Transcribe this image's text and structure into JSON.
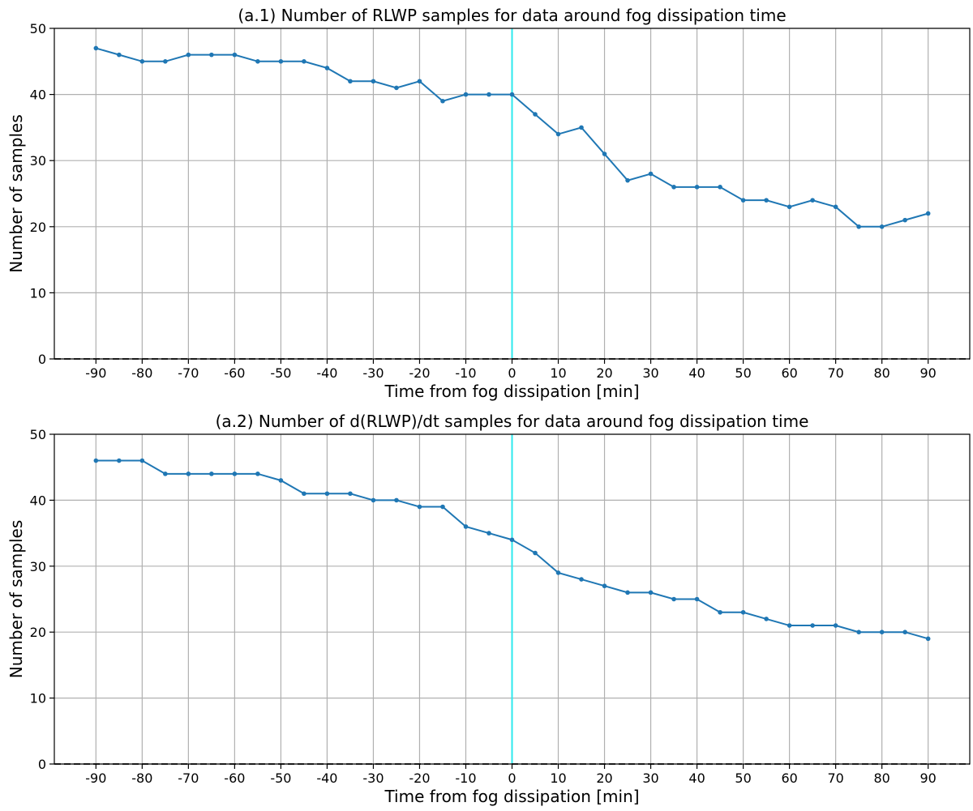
{
  "chart_data": [
    {
      "type": "line",
      "title": "(a.1) Number of RLWP samples for data around fog dissipation time",
      "xlabel": "Time from fog dissipation [min]",
      "ylabel": "Number of samples",
      "xlim": [
        -99,
        99
      ],
      "ylim": [
        0,
        50
      ],
      "xticks": [
        -90,
        -80,
        -70,
        -60,
        -50,
        -40,
        -30,
        -20,
        -10,
        0,
        10,
        20,
        30,
        40,
        50,
        60,
        70,
        80,
        90
      ],
      "yticks": [
        0,
        10,
        20,
        30,
        40,
        50
      ],
      "grid": true,
      "reference_lines": {
        "vertical_x": 0,
        "vertical_color": "#2ee8ee",
        "horizontal_y": 0,
        "horizontal_style": "dashed"
      },
      "series": [
        {
          "color": "#1f77b4",
          "x": [
            -90,
            -85,
            -80,
            -75,
            -70,
            -65,
            -60,
            -55,
            -50,
            -45,
            -40,
            -35,
            -30,
            -25,
            -20,
            -15,
            -10,
            -5,
            0,
            5,
            10,
            15,
            20,
            25,
            30,
            35,
            40,
            45,
            50,
            55,
            60,
            65,
            70,
            75,
            80,
            85,
            90
          ],
          "values": [
            47,
            46,
            45,
            45,
            46,
            46,
            46,
            45,
            45,
            45,
            44,
            42,
            42,
            41,
            42,
            39,
            40,
            40,
            40,
            37,
            34,
            35,
            31,
            27,
            28,
            26,
            26,
            26,
            24,
            24,
            23,
            24,
            23,
            20,
            20,
            21,
            22
          ]
        }
      ]
    },
    {
      "type": "line",
      "title": "(a.2) Number of d(RLWP)/dt samples for data around fog dissipation time",
      "xlabel": "Time from fog dissipation [min]",
      "ylabel": "Number of samples",
      "xlim": [
        -99,
        99
      ],
      "ylim": [
        0,
        50
      ],
      "xticks": [
        -90,
        -80,
        -70,
        -60,
        -50,
        -40,
        -30,
        -20,
        -10,
        0,
        10,
        20,
        30,
        40,
        50,
        60,
        70,
        80,
        90
      ],
      "yticks": [
        0,
        10,
        20,
        30,
        40,
        50
      ],
      "grid": true,
      "reference_lines": {
        "vertical_x": 0,
        "vertical_color": "#2ee8ee",
        "horizontal_y": 0,
        "horizontal_style": "dashed"
      },
      "series": [
        {
          "color": "#1f77b4",
          "x": [
            -90,
            -85,
            -80,
            -75,
            -70,
            -65,
            -60,
            -55,
            -50,
            -45,
            -40,
            -35,
            -30,
            -25,
            -20,
            -15,
            -10,
            -5,
            0,
            5,
            10,
            15,
            20,
            25,
            30,
            35,
            40,
            45,
            50,
            55,
            60,
            65,
            70,
            75,
            80,
            85,
            90
          ],
          "values": [
            46,
            46,
            46,
            44,
            44,
            44,
            44,
            44,
            43,
            41,
            41,
            41,
            40,
            40,
            39,
            39,
            36,
            35,
            34,
            32,
            29,
            28,
            27,
            26,
            26,
            25,
            25,
            23,
            23,
            22,
            21,
            21,
            21,
            20,
            20,
            20,
            19
          ]
        }
      ]
    }
  ]
}
